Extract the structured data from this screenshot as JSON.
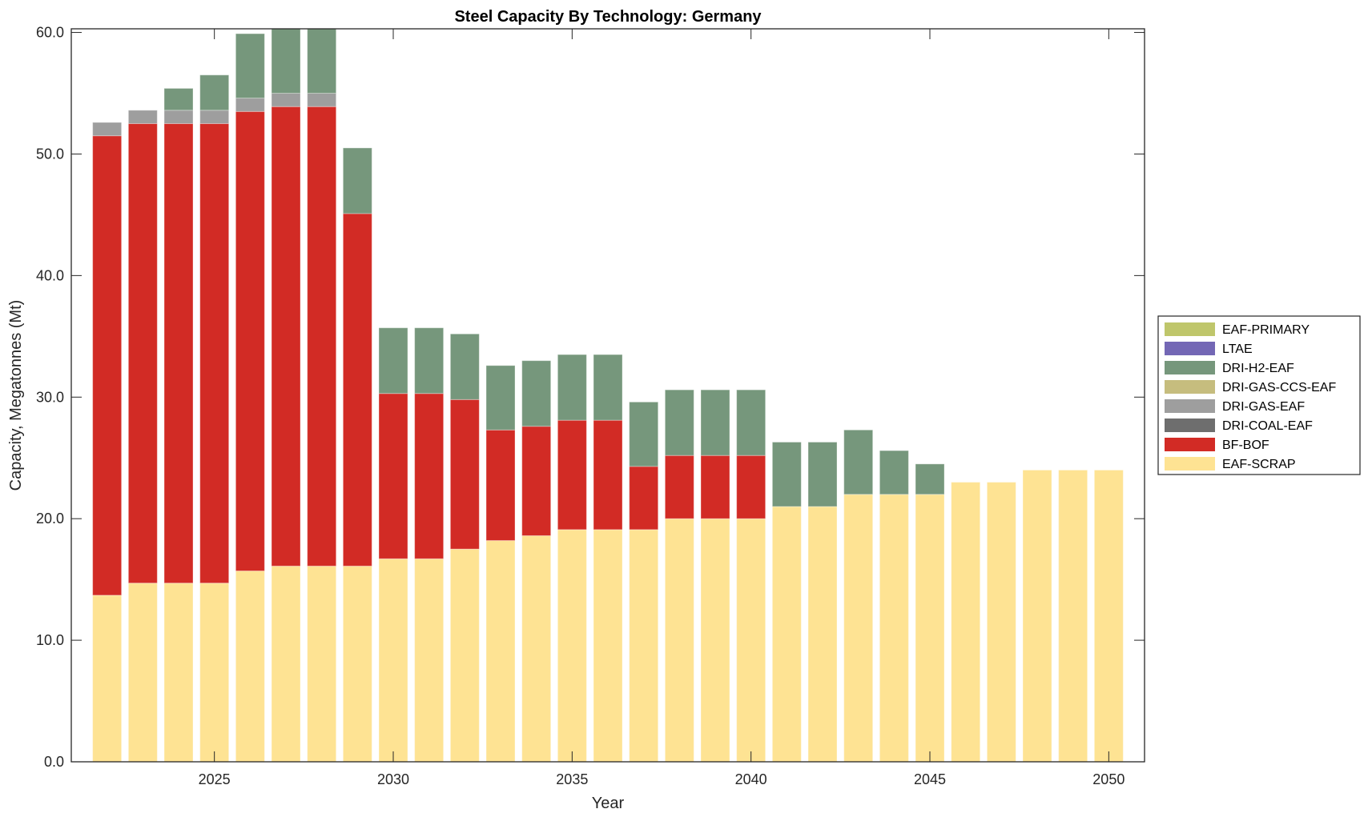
{
  "chart_data": {
    "type": "bar",
    "stacked": true,
    "title": "Steel Capacity By Technology: Germany",
    "xlabel": "Year",
    "ylabel": "Capacity, Megatonnes (Mt)",
    "xlim": [
      2021,
      2051
    ],
    "ylim": [
      0,
      60.3
    ],
    "xticks": [
      2025,
      2030,
      2035,
      2040,
      2045,
      2050
    ],
    "xtick_labels": [
      "2025",
      "2030",
      "2035",
      "2040",
      "2045",
      "2050"
    ],
    "yticks": [
      0,
      10,
      20,
      30,
      40,
      50,
      60
    ],
    "ytick_labels": [
      "0.0",
      "10.0",
      "20.0",
      "30.0",
      "40.0",
      "50.0",
      "60.0"
    ],
    "grid": false,
    "legend_position": "outside-right",
    "categories": [
      2022,
      2023,
      2024,
      2025,
      2026,
      2027,
      2028,
      2029,
      2030,
      2031,
      2032,
      2033,
      2034,
      2035,
      2036,
      2037,
      2038,
      2039,
      2040,
      2041,
      2042,
      2043,
      2044,
      2045,
      2046,
      2047,
      2048,
      2049,
      2050
    ],
    "series": [
      {
        "name": "EAF-SCRAP",
        "color": "#fee393",
        "values": [
          13.7,
          14.7,
          14.7,
          14.7,
          15.7,
          16.1,
          16.1,
          16.1,
          16.7,
          16.7,
          17.5,
          18.2,
          18.6,
          19.1,
          19.1,
          19.1,
          20.0,
          20.0,
          20.0,
          21.0,
          21.0,
          22.0,
          22.0,
          22.0,
          23.0,
          23.0,
          24.0,
          24.0,
          24.0
        ]
      },
      {
        "name": "BF-BOF",
        "color": "#d22b25",
        "values": [
          37.8,
          37.8,
          37.8,
          37.8,
          37.8,
          37.8,
          37.8,
          29.0,
          13.6,
          13.6,
          12.3,
          9.1,
          9.0,
          9.0,
          9.0,
          5.2,
          5.2,
          5.2,
          5.2,
          0,
          0,
          0,
          0,
          0,
          0,
          0,
          0,
          0,
          0
        ]
      },
      {
        "name": "DRI-COAL-EAF",
        "color": "#6e6e6e",
        "values": [
          0,
          0,
          0,
          0,
          0,
          0,
          0,
          0,
          0,
          0,
          0,
          0,
          0,
          0,
          0,
          0,
          0,
          0,
          0,
          0,
          0,
          0,
          0,
          0,
          0,
          0,
          0,
          0,
          0
        ]
      },
      {
        "name": "DRI-GAS-EAF",
        "color": "#9e9e9e",
        "values": [
          1.1,
          1.1,
          1.1,
          1.1,
          1.1,
          1.1,
          1.1,
          0,
          0,
          0,
          0,
          0,
          0,
          0,
          0,
          0,
          0,
          0,
          0,
          0,
          0,
          0,
          0,
          0,
          0,
          0,
          0,
          0,
          0
        ]
      },
      {
        "name": "DRI-GAS-CCS-EAF",
        "color": "#c6bd7e",
        "values": [
          0,
          0,
          0,
          0,
          0,
          0,
          0,
          0,
          0,
          0,
          0,
          0,
          0,
          0,
          0,
          0,
          0,
          0,
          0,
          0,
          0,
          0,
          0,
          0,
          0,
          0,
          0,
          0,
          0
        ]
      },
      {
        "name": "DRI-H2-EAF",
        "color": "#76977c",
        "values": [
          0,
          0,
          1.8,
          2.9,
          5.3,
          6.0,
          6.0,
          5.4,
          5.4,
          5.4,
          5.4,
          5.3,
          5.4,
          5.4,
          5.4,
          5.3,
          5.4,
          5.4,
          5.4,
          5.3,
          5.3,
          5.3,
          3.6,
          2.5,
          0,
          0,
          0,
          0,
          0
        ]
      },
      {
        "name": "LTAE",
        "color": "#7367b5",
        "values": [
          0,
          0,
          0,
          0,
          0,
          0,
          0,
          0,
          0,
          0,
          0,
          0,
          0,
          0,
          0,
          0,
          0,
          0,
          0,
          0,
          0,
          0,
          0,
          0,
          0,
          0,
          0,
          0,
          0
        ]
      },
      {
        "name": "EAF-PRIMARY",
        "color": "#bfc66b",
        "values": [
          0,
          0,
          0,
          0,
          0,
          0,
          0,
          0,
          0,
          0,
          0,
          0,
          0,
          0,
          0,
          0,
          0,
          0,
          0,
          0,
          0,
          0,
          0,
          0,
          0,
          0,
          0,
          0,
          0
        ]
      }
    ],
    "legend": [
      {
        "name": "EAF-PRIMARY",
        "color": "#bfc66b"
      },
      {
        "name": "LTAE",
        "color": "#7367b5"
      },
      {
        "name": "DRI-H2-EAF",
        "color": "#76977c"
      },
      {
        "name": "DRI-GAS-CCS-EAF",
        "color": "#c6bd7e"
      },
      {
        "name": "DRI-GAS-EAF",
        "color": "#9e9e9e"
      },
      {
        "name": "DRI-COAL-EAF",
        "color": "#6e6e6e"
      },
      {
        "name": "BF-BOF",
        "color": "#d22b25"
      },
      {
        "name": "EAF-SCRAP",
        "color": "#fee393"
      }
    ]
  }
}
